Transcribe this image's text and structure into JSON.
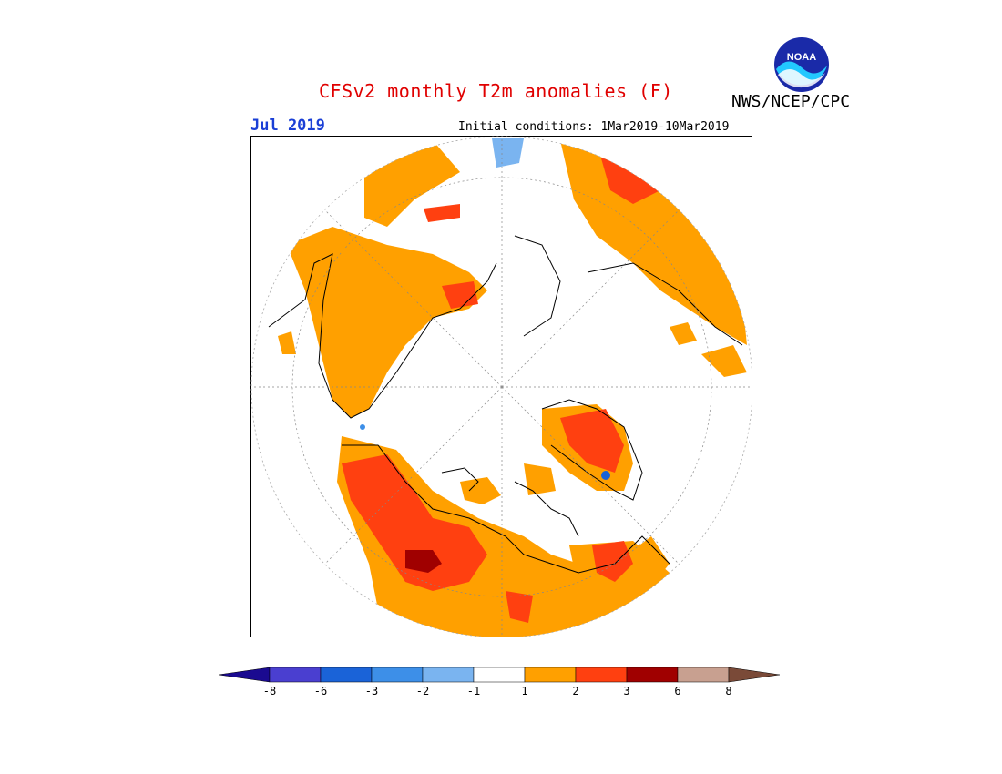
{
  "title": "CFSv2 monthly T2m anomalies (F)",
  "agency": "NWS/NCEP/CPC",
  "logo_text": "NOAA",
  "valid_month": "Jul 2019",
  "initial_conditions": "Initial conditions: 1Mar2019-10Mar2019",
  "colors": {
    "title": "#e00000",
    "month": "#1a3fd6",
    "land_outline": "#000000"
  },
  "legend": {
    "colors": [
      "#1a0a90",
      "#4a3fd0",
      "#1a63d8",
      "#3d8fe8",
      "#7ab4f0",
      "#ffffff",
      "#ffa000",
      "#ff4010",
      "#a00000",
      "#c8a090",
      "#7a4a38"
    ],
    "labels": [
      "-8",
      "-6",
      "-3",
      "-2",
      "-1",
      "1",
      "2",
      "3",
      "6",
      "8"
    ]
  }
}
